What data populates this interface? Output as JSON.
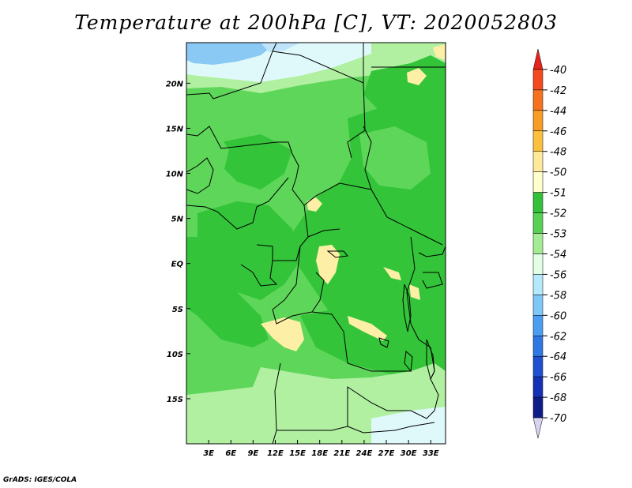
{
  "title": "Temperature at 200hPa [C], VT: 2020052803",
  "credit": "GrADS: IGES/COLA",
  "map": {
    "region": "Central Africa",
    "lat_labels": [
      "20N",
      "15N",
      "10N",
      "5N",
      "EQ",
      "5S",
      "10S",
      "15S"
    ],
    "lat_values": [
      20,
      15,
      10,
      5,
      0,
      -5,
      -10,
      -15
    ],
    "lon_labels": [
      "3E",
      "6E",
      "9E",
      "12E",
      "15E",
      "18E",
      "21E",
      "24E",
      "27E",
      "30E",
      "33E"
    ],
    "lon_values": [
      3,
      6,
      9,
      12,
      15,
      18,
      21,
      24,
      27,
      30,
      33
    ],
    "lon_range": [
      0,
      35
    ],
    "lat_range": [
      -20,
      24.5
    ]
  },
  "colorbar": {
    "levels": [
      "-40",
      "-42",
      "-44",
      "-46",
      "-48",
      "-50",
      "-51",
      "-52",
      "-53",
      "-54",
      "-56",
      "-58",
      "-60",
      "-62",
      "-64",
      "-66",
      "-68",
      "-70"
    ],
    "colors": [
      "#e8221c",
      "#f24a1c",
      "#f7721e",
      "#f89c26",
      "#fbc13e",
      "#fee99a",
      "#ffffcc",
      "#34c13a",
      "#57d154",
      "#a3ec94",
      "#e2ffe6",
      "#b4e9fb",
      "#7fc7f7",
      "#4b9df0",
      "#2f77e3",
      "#1e4fd0",
      "#1530b5",
      "#0e1c8a",
      "#d8d4f0"
    ]
  },
  "legend_classes": {
    "warm_yellow": "#fdf0a6",
    "green_dark": "#33c439",
    "green_mid": "#5ed659",
    "green_light": "#b1f0a1",
    "cyan_pale": "#dff9fb",
    "blue_light": "#8ac9f4"
  }
}
